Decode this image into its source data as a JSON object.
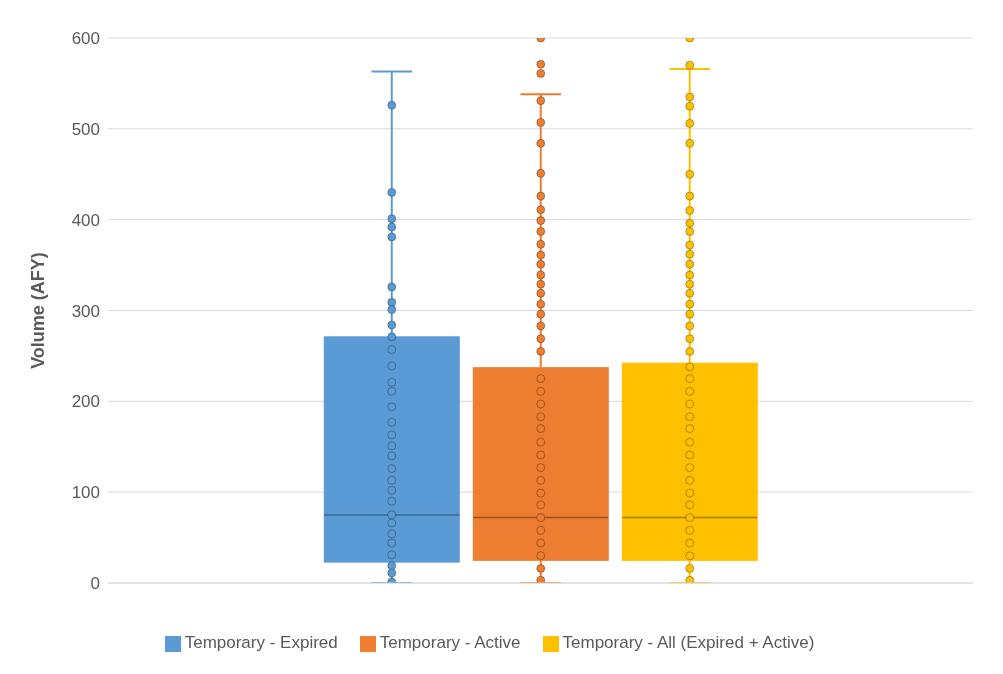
{
  "chart_data": {
    "type": "box",
    "ylabel": "Volume (AFY)",
    "categories": [
      null
    ],
    "ylim": [
      0,
      600
    ],
    "yticks": [
      0,
      100,
      200,
      300,
      400,
      500,
      600
    ],
    "grid": "y",
    "legend": "bottom",
    "marker": "circle",
    "series": [
      {
        "name": "Temporary - Expired",
        "color": "#5b9bd5",
        "boxes": [
          {
            "low": 0,
            "q1": 23,
            "median": 75,
            "q3": 271,
            "high": 563
          }
        ]
      },
      {
        "name": "Temporary - Active",
        "color": "#ed7d31",
        "boxes": [
          {
            "low": 0,
            "q1": 25,
            "median": 72,
            "q3": 237,
            "high": 538,
            "outliers": [
              600,
              571,
              561
            ]
          }
        ]
      },
      {
        "name": "Temporary - All (Expired + Active)",
        "color": "#ffc000",
        "boxes": [
          {
            "low": 0,
            "q1": 25,
            "median": 72,
            "q3": 242,
            "high": 566,
            "outliers": [
              600,
              570
            ]
          }
        ]
      },
      {
        "type": "scatter",
        "color": "#5b9bd5",
        "x": [
          null,
          null,
          null,
          null,
          null,
          null,
          null,
          null,
          null,
          null,
          null,
          null,
          null,
          null,
          null,
          null,
          null,
          null,
          null,
          null,
          null,
          null,
          null,
          null,
          null,
          null,
          null,
          null,
          null,
          null,
          null
        ],
        "values": [
          526,
          430,
          401,
          392,
          381,
          326,
          309,
          301,
          284,
          271,
          257,
          239,
          221,
          211,
          194,
          177,
          163,
          151,
          140,
          126,
          113,
          102,
          90,
          75,
          66,
          54,
          44,
          31,
          19,
          11,
          1
        ]
      },
      {
        "type": "scatter",
        "color": "#ed7d31",
        "x": [
          null,
          null,
          null,
          null,
          null,
          null,
          null,
          null,
          null,
          null,
          null,
          null,
          null,
          null,
          null,
          null,
          null,
          null,
          null,
          null,
          null,
          null,
          null,
          null,
          null,
          null,
          null,
          null,
          null,
          null,
          null,
          null,
          null,
          null,
          null,
          null
        ],
        "values": [
          531,
          507,
          484,
          451,
          426,
          411,
          399,
          387,
          373,
          361,
          351,
          339,
          329,
          319,
          307,
          296,
          283,
          269,
          255,
          225,
          211,
          197,
          183,
          170,
          155,
          141,
          127,
          113,
          99,
          86,
          72,
          58,
          44,
          30,
          16,
          3
        ]
      },
      {
        "type": "scatter",
        "color": "#ffc000",
        "x": [
          null,
          null,
          null,
          null,
          null,
          null,
          null,
          null,
          null,
          null,
          null,
          null,
          null,
          null,
          null,
          null,
          null,
          null,
          null,
          null,
          null,
          null,
          null,
          null,
          null,
          null,
          null,
          null,
          null,
          null,
          null,
          null,
          null,
          null,
          null,
          null,
          null,
          null,
          null
        ],
        "values": [
          null,
          535,
          525,
          506,
          484,
          450,
          426,
          410,
          396,
          387,
          372,
          362,
          351,
          339,
          329,
          319,
          307,
          296,
          283,
          269,
          255,
          238,
          225,
          211,
          197,
          183,
          170,
          155,
          141,
          127,
          113,
          99,
          86,
          72,
          58,
          44,
          30,
          16,
          3
        ]
      }
    ]
  }
}
